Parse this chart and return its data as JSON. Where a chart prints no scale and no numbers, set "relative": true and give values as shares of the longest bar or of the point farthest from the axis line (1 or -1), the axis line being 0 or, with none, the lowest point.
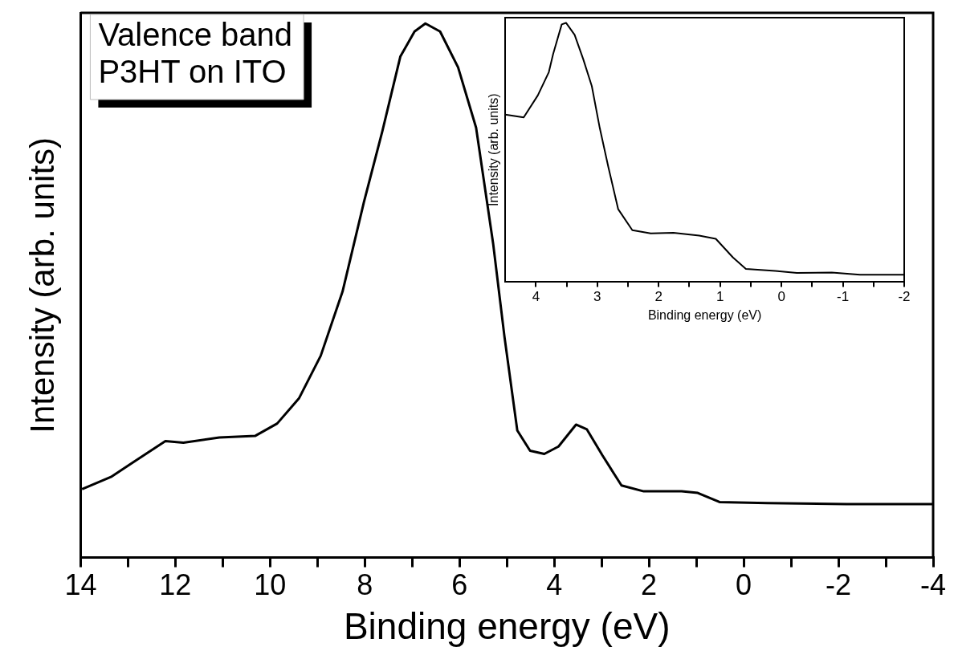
{
  "chart_data": [
    {
      "type": "line",
      "xlabel": "Binding energy (eV)",
      "ylabel": "Intensity (arb. units)",
      "relative": true,
      "marker": "none",
      "line_style": "solid",
      "grid": false,
      "legend": false,
      "annotations": [
        "Valence band\nP3HT on ITO"
      ],
      "xlim": [
        14,
        -4
      ],
      "xticks": [
        14,
        {
          "value": 13,
          "label": null
        },
        12,
        {
          "value": 11,
          "label": null
        },
        10,
        {
          "value": 9,
          "label": null
        },
        8,
        {
          "value": 7,
          "label": null
        },
        6,
        {
          "value": 5,
          "label": null
        },
        4,
        {
          "value": 3,
          "label": null
        },
        2,
        {
          "value": 1,
          "label": null
        },
        0,
        {
          "value": -1,
          "label": null
        },
        -2,
        {
          "value": -3,
          "label": null
        },
        -4
      ],
      "series": [
        {
          "color": "#000000",
          "x": [
            13.97,
            13.36,
            12.9,
            12.21,
            11.83,
            11.07,
            10.31,
            9.85,
            9.39,
            8.93,
            8.47,
            8.02,
            7.63,
            7.25,
            6.95,
            6.72,
            6.41,
            6.03,
            5.65,
            5.29,
            5.05,
            4.78,
            4.51,
            4.21,
            3.91,
            3.54,
            3.31,
            2.98,
            2.58,
            2.11,
            1.31,
            0.97,
            0.51,
            -0.5,
            -2.17,
            -4
          ],
          "values": [
            0.128,
            0.151,
            0.178,
            0.218,
            0.215,
            0.225,
            0.228,
            0.251,
            0.298,
            0.378,
            0.498,
            0.665,
            0.798,
            0.938,
            0.985,
            1.0,
            0.985,
            0.918,
            0.805,
            0.588,
            0.413,
            0.238,
            0.2,
            0.194,
            0.208,
            0.249,
            0.24,
            0.191,
            0.135,
            0.124,
            0.124,
            0.121,
            0.104,
            0.102,
            0.1,
            0.1
          ]
        }
      ]
    },
    {
      "type": "line",
      "xlabel": "Binding energy (eV)",
      "ylabel": "Intensity (arb. units)",
      "relative": true,
      "marker": "none",
      "line_style": "solid",
      "grid": false,
      "legend": false,
      "xlim": [
        4.5,
        -2
      ],
      "xticks": [
        4,
        {
          "value": 3.5,
          "label": null
        },
        3,
        {
          "value": 2.5,
          "label": null
        },
        2,
        {
          "value": 1.5,
          "label": null
        },
        1,
        {
          "value": 0.5,
          "label": null
        },
        0,
        {
          "value": -0.5,
          "label": null
        },
        -1,
        {
          "value": -1.5,
          "label": null
        },
        -2
      ],
      "series": [
        {
          "color": "#000000",
          "x": [
            4.5,
            4.2,
            3.97,
            3.79,
            3.72,
            3.58,
            3.51,
            3.37,
            3.23,
            3.09,
            2.96,
            2.82,
            2.66,
            2.43,
            2.13,
            1.76,
            1.34,
            1.07,
            0.79,
            0.58,
            0.1,
            -0.25,
            -0.82,
            -1.28,
            -2.0
          ],
          "values": [
            0.646,
            0.635,
            0.72,
            0.81,
            0.88,
            0.994,
            1.0,
            0.954,
            0.86,
            0.756,
            0.594,
            0.443,
            0.281,
            0.2,
            0.188,
            0.19,
            0.179,
            0.167,
            0.095,
            0.051,
            0.043,
            0.035,
            0.037,
            0.028,
            0.028
          ]
        }
      ]
    }
  ]
}
